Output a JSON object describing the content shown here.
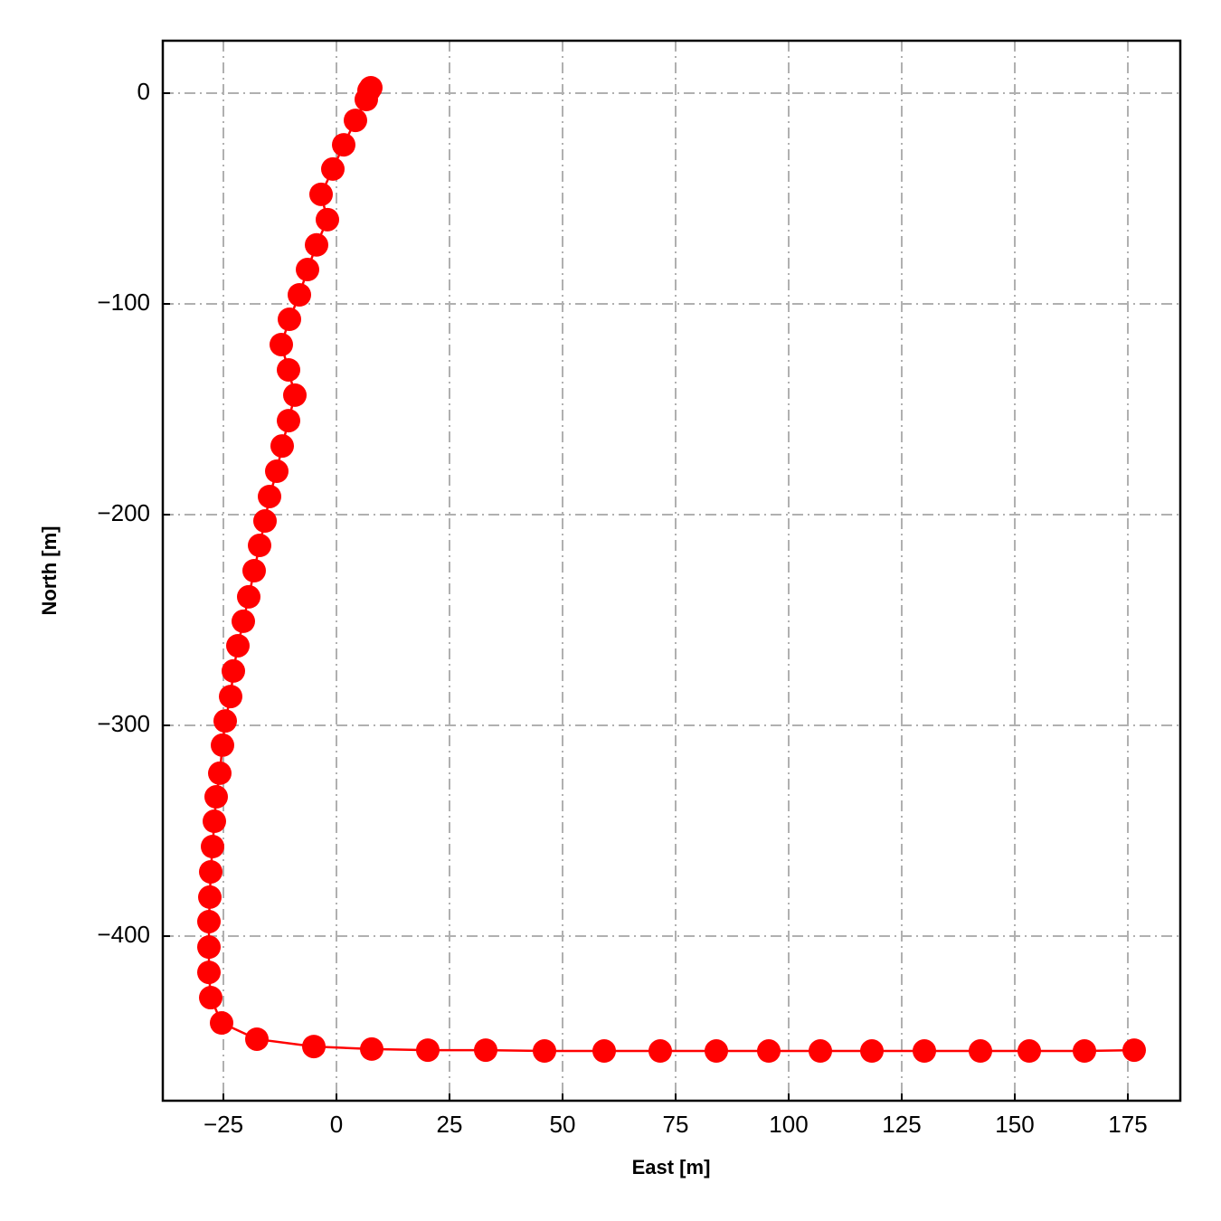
{
  "chart_data": {
    "type": "line",
    "x_label": "East [m]",
    "y_label": "North [m]",
    "color": "#ff0000",
    "markers": true,
    "grid": true,
    "xlim": [
      -38.4,
      186.6
    ],
    "ylim": [
      -478.1,
      24.9
    ],
    "xticks": [
      {
        "value": -25,
        "label": "−25"
      },
      0,
      25,
      50,
      75,
      100,
      125,
      150,
      175
    ],
    "yticks": [
      0,
      {
        "value": -100,
        "label": "−100"
      },
      {
        "value": -200,
        "label": "−200"
      },
      {
        "value": -300,
        "label": "−300"
      },
      {
        "value": -400,
        "label": "−400"
      }
    ],
    "x": [
      7.6,
      7.2,
      6.6,
      4.2,
      1.6,
      -0.8,
      -3.4,
      -2,
      -4.4,
      -6.4,
      -8.2,
      -10.4,
      -12.2,
      -10.6,
      -9.2,
      -10.6,
      -12,
      -13.2,
      -14.8,
      -15.8,
      -17,
      -18.2,
      -19.4,
      -20.6,
      -21.8,
      -22.8,
      -23.4,
      -24.6,
      -25.2,
      -25.8,
      -26.6,
      -27,
      -27.4,
      -27.8,
      -28,
      -28.2,
      -28.2,
      -28.2,
      -27.8,
      -25.4,
      -17.6,
      -5,
      7.8,
      20.2,
      33,
      46,
      59.2,
      71.6,
      84,
      95.6,
      107,
      118.4,
      130,
      142.4,
      153.2,
      165.4,
      176.4
    ],
    "y": [
      2.6,
      1.3,
      -3,
      -12.9,
      -24.5,
      -36,
      -48,
      -60,
      -72,
      -83.7,
      -95.7,
      -107.3,
      -119.3,
      -131.3,
      -143.3,
      -155.4,
      -167.4,
      -179.4,
      -191.4,
      -203,
      -214.6,
      -226.6,
      -239,
      -250.6,
      -262.2,
      -274.2,
      -286.3,
      -297.9,
      -309.4,
      -322.7,
      -333.9,
      -345.5,
      -357.5,
      -369.5,
      -381.5,
      -393.1,
      -405.2,
      -417.2,
      -429.2,
      -441.2,
      -448.9,
      -452.4,
      -453.6,
      -454.1,
      -454.1,
      -454.5,
      -454.5,
      -454.5,
      -454.5,
      -454.5,
      -454.5,
      -454.5,
      -454.5,
      -454.5,
      -454.5,
      -454.5,
      -454.1
    ]
  }
}
